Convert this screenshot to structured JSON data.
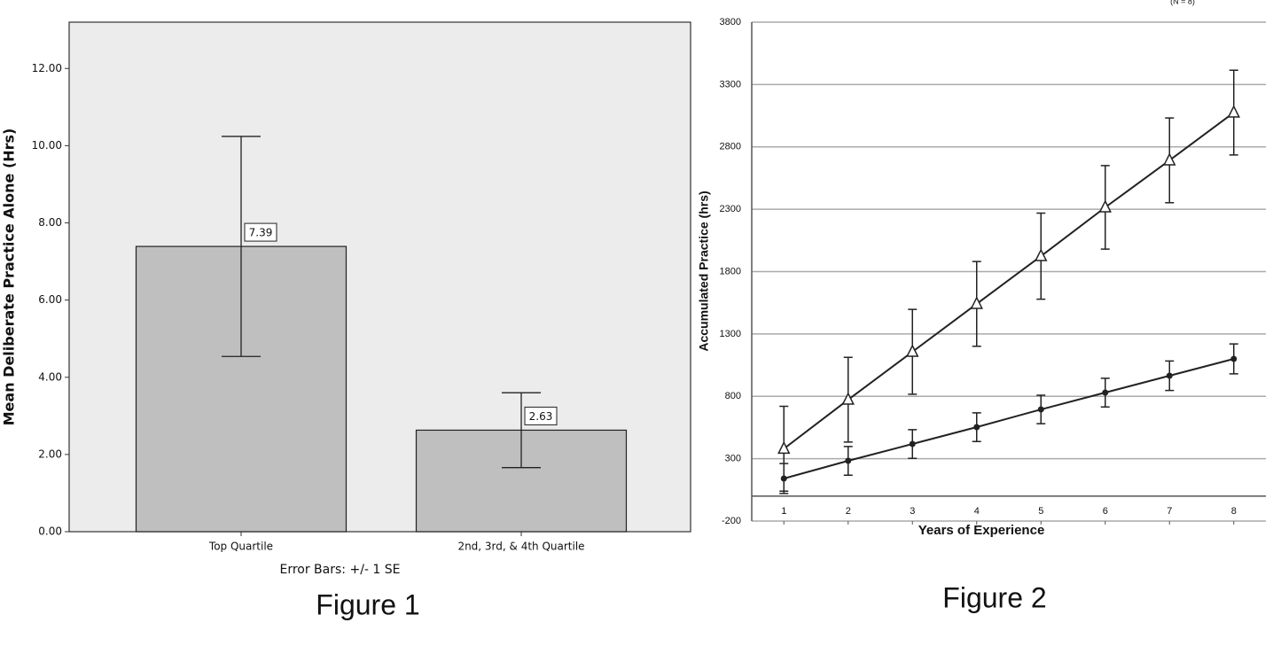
{
  "chart_data": [
    {
      "type": "bar",
      "caption": "Figure 1",
      "ylabel": "Mean Deliberate Practice Alone (Hrs)",
      "note": "Error Bars: +/- 1 SE",
      "categories": [
        "Top Quartile",
        "2nd, 3rd, & 4th Quartile"
      ],
      "values": [
        7.39,
        2.63
      ],
      "errors": [
        2.85,
        0.97
      ],
      "color": "#bfbfbf",
      "background": "#ececec",
      "ylim": [
        0,
        13.2
      ],
      "yticks": [
        {
          "value": 0,
          "label": "0.00"
        },
        {
          "value": 2,
          "label": "2.00"
        },
        {
          "value": 4,
          "label": "4.00"
        },
        {
          "value": 6,
          "label": "6.00"
        },
        {
          "value": 8,
          "label": "8.00"
        },
        {
          "value": 10,
          "label": "10.00"
        },
        {
          "value": 12,
          "label": "12.00"
        }
      ],
      "grid": false
    },
    {
      "type": "line",
      "caption": "Figure 2",
      "annotation": "(N = 8)",
      "xlabel": "Years of Experience",
      "ylabel": "Accumulated Practice (hrs)",
      "x": [
        1,
        2,
        3,
        4,
        5,
        6,
        7,
        8
      ],
      "series": [
        {
          "color": "#222222",
          "marker": "triangle",
          "values": [
            380,
            773,
            1157,
            1541,
            1924,
            2315,
            2692,
            3075
          ],
          "errors": [
            340,
            340,
            340,
            340,
            345,
            335,
            340,
            340
          ]
        },
        {
          "color": "#222222",
          "marker": "circle",
          "values": [
            141,
            283,
            418,
            553,
            695,
            830,
            965,
            1100
          ],
          "errors": [
            120,
            115,
            115,
            115,
            114,
            115,
            118,
            120
          ]
        }
      ],
      "xlim": [
        0.5,
        8.5
      ],
      "xticks": [
        1,
        2,
        3,
        4,
        5,
        6,
        7,
        8
      ],
      "ylim": [
        -200,
        3800
      ],
      "yticks": [
        -200,
        300,
        800,
        1300,
        1800,
        2300,
        2800,
        3300,
        3800
      ],
      "grid": true
    }
  ]
}
